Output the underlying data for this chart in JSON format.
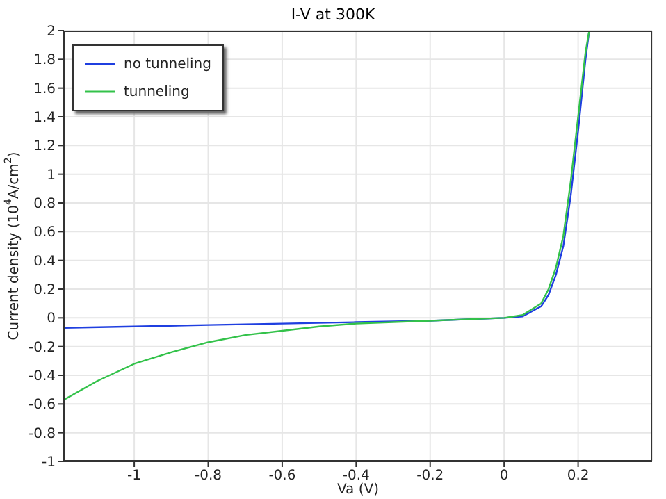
{
  "chart_data": {
    "type": "line",
    "title": "I-V at 300K",
    "xlabel": "Va (V)",
    "ylabel": "Current density (10$^{4}$A/cm$^{2}$)",
    "xlim": [
      -1.19,
      0.4
    ],
    "xticks": [
      -1,
      -0.8,
      -0.6,
      -0.4,
      -0.2,
      0,
      0.2
    ],
    "ylim": [
      -1,
      2
    ],
    "yticks": [
      -1,
      -0.8,
      -0.6,
      -0.4,
      -0.2,
      0,
      0.2,
      0.4,
      0.6,
      0.8,
      1,
      1.2,
      1.4,
      1.6,
      1.8,
      2
    ],
    "grid": true,
    "legend": "top left",
    "marker": "none",
    "line_style": "solid",
    "series": [
      {
        "name": "no tunneling",
        "color": "#1f3fe0",
        "x": [
          -1.19,
          -1,
          -0.8,
          -0.6,
          -0.4,
          -0.2,
          0,
          0.05,
          0.1,
          0.12,
          0.14,
          0.16,
          0.18,
          0.2,
          0.22,
          0.23
        ],
        "values": [
          -0.07,
          -0.06,
          -0.05,
          -0.04,
          -0.03,
          -0.02,
          0,
          0.01,
          0.08,
          0.16,
          0.3,
          0.5,
          0.85,
          1.3,
          1.8,
          2
        ]
      },
      {
        "name": "tunneling",
        "color": "#33c24a",
        "x": [
          -1.19,
          -1.1,
          -1,
          -0.9,
          -0.8,
          -0.7,
          -0.6,
          -0.5,
          -0.4,
          -0.3,
          -0.2,
          -0.1,
          0,
          0.05,
          0.1,
          0.12,
          0.14,
          0.16,
          0.18,
          0.2,
          0.22,
          0.23
        ],
        "values": [
          -0.57,
          -0.44,
          -0.32,
          -0.24,
          -0.17,
          -0.12,
          -0.09,
          -0.06,
          -0.04,
          -0.03,
          -0.02,
          -0.01,
          0,
          0.02,
          0.1,
          0.2,
          0.35,
          0.57,
          0.95,
          1.4,
          1.85,
          2
        ]
      }
    ]
  }
}
